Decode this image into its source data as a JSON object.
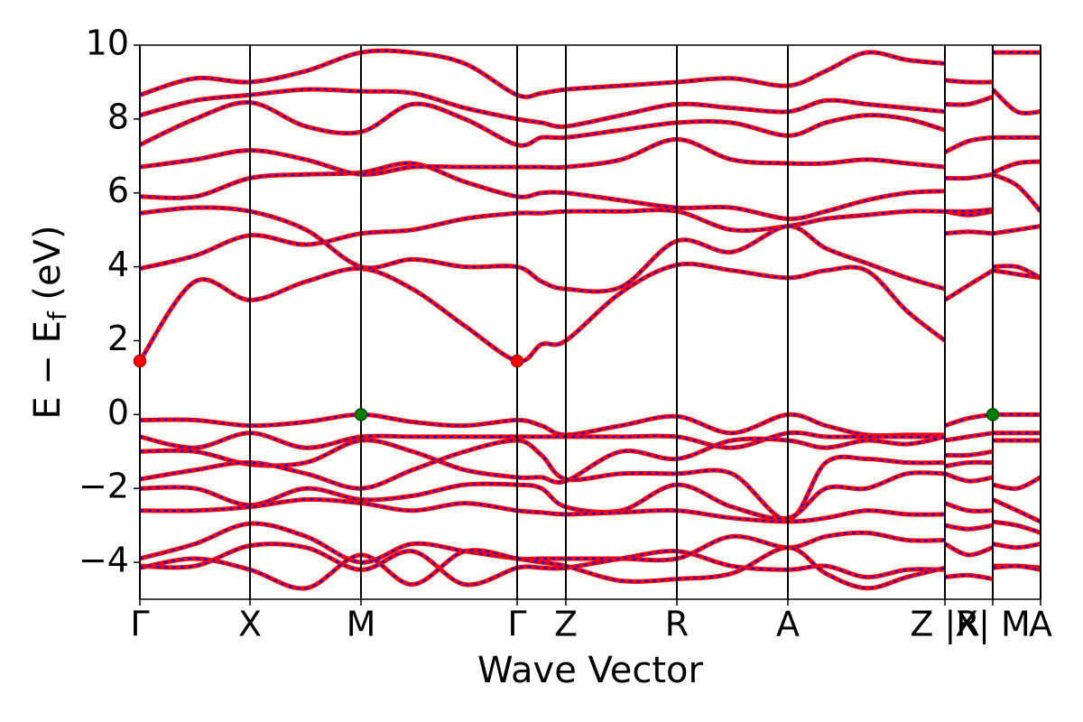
{
  "chart_data": {
    "type": "line",
    "xlabel": "Wave Vector",
    "ylabel": [
      "E − E",
      "f",
      " (eV)"
    ],
    "xlim": [
      0,
      9.98
    ],
    "ylim": [
      -5,
      10
    ],
    "xticks": [
      {
        "value": 0,
        "label": "Γ"
      },
      {
        "value": 1.22,
        "label": "X"
      },
      {
        "value": 2.45,
        "label": "M"
      },
      {
        "value": 4.18,
        "label": "Γ"
      },
      {
        "value": 4.72,
        "label": "Z"
      },
      {
        "value": 5.95,
        "label": "R"
      },
      {
        "value": 7.18,
        "label": "A"
      },
      {
        "value": 8.92,
        "label": "Z |R"
      },
      {
        "value": 9.45,
        "label": "X| M"
      },
      {
        "value": 9.98,
        "label": "A"
      }
    ],
    "yticks": [
      {
        "value": -4,
        "label": "−4"
      },
      {
        "value": -2,
        "label": "−2"
      },
      0,
      2,
      4,
      6,
      8,
      10
    ],
    "vertical_lines": true,
    "dash_color": "blue",
    "x": [
      0,
      0.61,
      1.22,
      1.84,
      2.45,
      3.02,
      3.6,
      4.18,
      4.45,
      4.72,
      5.33,
      5.95,
      6.56,
      7.18,
      7.6,
      8.05,
      8.5,
      8.92,
      8.92,
      9.18,
      9.45,
      9.45,
      9.72,
      9.98
    ],
    "series": [
      {
        "color": "red",
        "values": [
          1.45,
          3.6,
          3.1,
          3.6,
          3.95,
          3.4,
          2.4,
          1.45,
          1.9,
          2.0,
          3.3,
          4.05,
          3.9,
          3.7,
          3.9,
          3.9,
          2.8,
          2.0,
          3.1,
          3.5,
          3.9,
          3.9,
          3.8,
          3.7
        ]
      },
      {
        "color": "red",
        "values": [
          3.95,
          4.3,
          4.85,
          4.6,
          4.9,
          5.0,
          5.3,
          5.45,
          5.45,
          5.5,
          5.5,
          5.5,
          5.0,
          5.1,
          5.3,
          5.4,
          5.5,
          5.5,
          4.9,
          4.95,
          4.9,
          4.9,
          5.0,
          5.1
        ]
      },
      {
        "color": "red",
        "values": [
          5.45,
          5.6,
          5.5,
          5.0,
          4.0,
          4.2,
          4.0,
          4.0,
          3.6,
          3.4,
          3.45,
          4.7,
          4.4,
          5.1,
          4.5,
          4.1,
          3.7,
          3.4,
          5.5,
          5.4,
          5.5,
          4.0,
          4.0,
          3.7
        ]
      },
      {
        "color": "red",
        "values": [
          5.9,
          5.9,
          6.4,
          6.5,
          6.55,
          6.8,
          6.3,
          5.9,
          6.0,
          6.0,
          5.8,
          5.6,
          5.6,
          5.3,
          5.5,
          5.8,
          6.0,
          6.05,
          5.5,
          5.5,
          5.55,
          6.5,
          6.2,
          5.5
        ]
      },
      {
        "color": "red",
        "values": [
          6.7,
          6.9,
          7.15,
          6.9,
          6.5,
          6.7,
          6.7,
          6.7,
          6.7,
          6.7,
          6.9,
          7.45,
          6.9,
          6.8,
          6.8,
          6.9,
          6.8,
          6.7,
          6.4,
          6.4,
          6.5,
          6.55,
          6.8,
          6.85
        ]
      },
      {
        "color": "red",
        "values": [
          7.3,
          8.0,
          8.45,
          7.8,
          7.65,
          8.4,
          8.0,
          7.3,
          7.5,
          7.5,
          7.7,
          7.9,
          7.9,
          7.55,
          7.9,
          8.1,
          8.0,
          7.7,
          7.1,
          7.4,
          7.5,
          7.5,
          7.5,
          7.5
        ]
      },
      {
        "color": "red",
        "values": [
          8.1,
          8.5,
          8.65,
          8.8,
          8.75,
          8.7,
          8.3,
          8.0,
          7.9,
          7.8,
          8.1,
          8.4,
          8.3,
          8.2,
          8.5,
          8.4,
          8.3,
          8.2,
          8.4,
          8.4,
          8.6,
          8.8,
          8.2,
          8.2
        ]
      },
      {
        "color": "red",
        "values": [
          8.65,
          9.1,
          9.0,
          9.3,
          9.8,
          9.8,
          9.5,
          8.65,
          8.7,
          8.8,
          8.9,
          9.0,
          9.1,
          8.9,
          9.3,
          9.8,
          9.6,
          9.5,
          9.05,
          9.0,
          9.0,
          9.8,
          9.8,
          9.8
        ]
      },
      {
        "color": "red",
        "values": [
          -0.15,
          -0.15,
          -0.3,
          -0.2,
          0.0,
          -0.2,
          -0.3,
          -0.15,
          -0.3,
          -0.55,
          -0.3,
          -0.05,
          -0.5,
          0.0,
          -0.3,
          -0.55,
          -0.55,
          -0.55,
          -0.3,
          -0.1,
          0.0,
          0.0,
          0.0,
          0.0
        ]
      },
      {
        "color": "red",
        "values": [
          -0.6,
          -0.9,
          -0.5,
          -0.9,
          -0.6,
          -0.6,
          -0.6,
          -0.6,
          -0.6,
          -0.6,
          -0.6,
          -0.6,
          -0.9,
          -0.5,
          -0.6,
          -0.6,
          -0.6,
          -0.6,
          -0.7,
          -0.6,
          -0.5,
          -0.5,
          -0.5,
          -0.5
        ]
      },
      {
        "color": "red",
        "values": [
          -1.0,
          -1.0,
          -1.35,
          -1.3,
          -0.7,
          -1.0,
          -1.5,
          -1.7,
          -1.7,
          -1.8,
          -1.0,
          -1.2,
          -0.7,
          -0.7,
          -0.9,
          -0.7,
          -0.8,
          -0.6,
          -1.1,
          -1.1,
          -1.0,
          -0.7,
          -0.7,
          -0.7
        ]
      },
      {
        "color": "red",
        "values": [
          -1.75,
          -1.5,
          -1.3,
          -1.6,
          -2.0,
          -1.5,
          -1.0,
          -0.7,
          -1.1,
          -1.75,
          -1.6,
          -1.6,
          -1.6,
          -2.85,
          -1.3,
          -1.2,
          -1.3,
          -1.3,
          -1.4,
          -1.3,
          -1.3,
          -1.9,
          -2.0,
          -1.7
        ]
      },
      {
        "color": "red",
        "values": [
          -2.0,
          -2.0,
          -2.45,
          -2.0,
          -2.3,
          -2.2,
          -1.9,
          -1.9,
          -2.0,
          -2.5,
          -2.6,
          -1.9,
          -2.5,
          -2.8,
          -2.0,
          -2.0,
          -1.6,
          -1.6,
          -1.6,
          -1.8,
          -1.7,
          -2.3,
          -2.6,
          -2.9
        ]
      },
      {
        "color": "red",
        "values": [
          -2.6,
          -2.6,
          -2.5,
          -2.3,
          -2.4,
          -2.6,
          -2.4,
          -2.6,
          -2.65,
          -2.7,
          -2.65,
          -2.6,
          -2.8,
          -2.9,
          -2.8,
          -2.6,
          -2.7,
          -2.7,
          -2.4,
          -2.6,
          -2.6,
          -2.9,
          -3.0,
          -3.2
        ]
      },
      {
        "color": "red",
        "values": [
          -3.9,
          -3.5,
          -2.95,
          -3.3,
          -4.0,
          -3.5,
          -3.7,
          -3.9,
          -3.9,
          -3.9,
          -3.9,
          -3.9,
          -3.3,
          -3.6,
          -3.3,
          -3.2,
          -3.4,
          -3.4,
          -3.0,
          -3.1,
          -3.0,
          -3.5,
          -3.6,
          -3.5
        ]
      },
      {
        "color": "red",
        "values": [
          -4.1,
          -4.1,
          -3.55,
          -3.6,
          -4.2,
          -3.7,
          -4.6,
          -4.15,
          -4.15,
          -4.15,
          -3.9,
          -3.7,
          -4.1,
          -4.2,
          -4.1,
          -4.4,
          -4.2,
          -4.2,
          -3.5,
          -3.8,
          -3.6,
          -4.1,
          -4.1,
          -4.15
        ]
      },
      {
        "color": "red",
        "values": [
          -4.15,
          -3.9,
          -4.2,
          -4.7,
          -3.8,
          -4.6,
          -3.7,
          -3.9,
          -4.0,
          -4.1,
          -4.5,
          -4.45,
          -4.3,
          -3.6,
          -4.3,
          -4.7,
          -4.4,
          -4.15,
          -4.4,
          -4.35,
          -4.45,
          -4.15,
          -4.1,
          -4.2
        ]
      }
    ],
    "markers": [
      {
        "x": 0,
        "y": 1.45,
        "color": "red"
      },
      {
        "x": 4.18,
        "y": 1.45,
        "color": "red"
      },
      {
        "x": 2.45,
        "y": 0,
        "color": "green"
      },
      {
        "x": 9.45,
        "y": 0,
        "color": "green"
      }
    ]
  }
}
